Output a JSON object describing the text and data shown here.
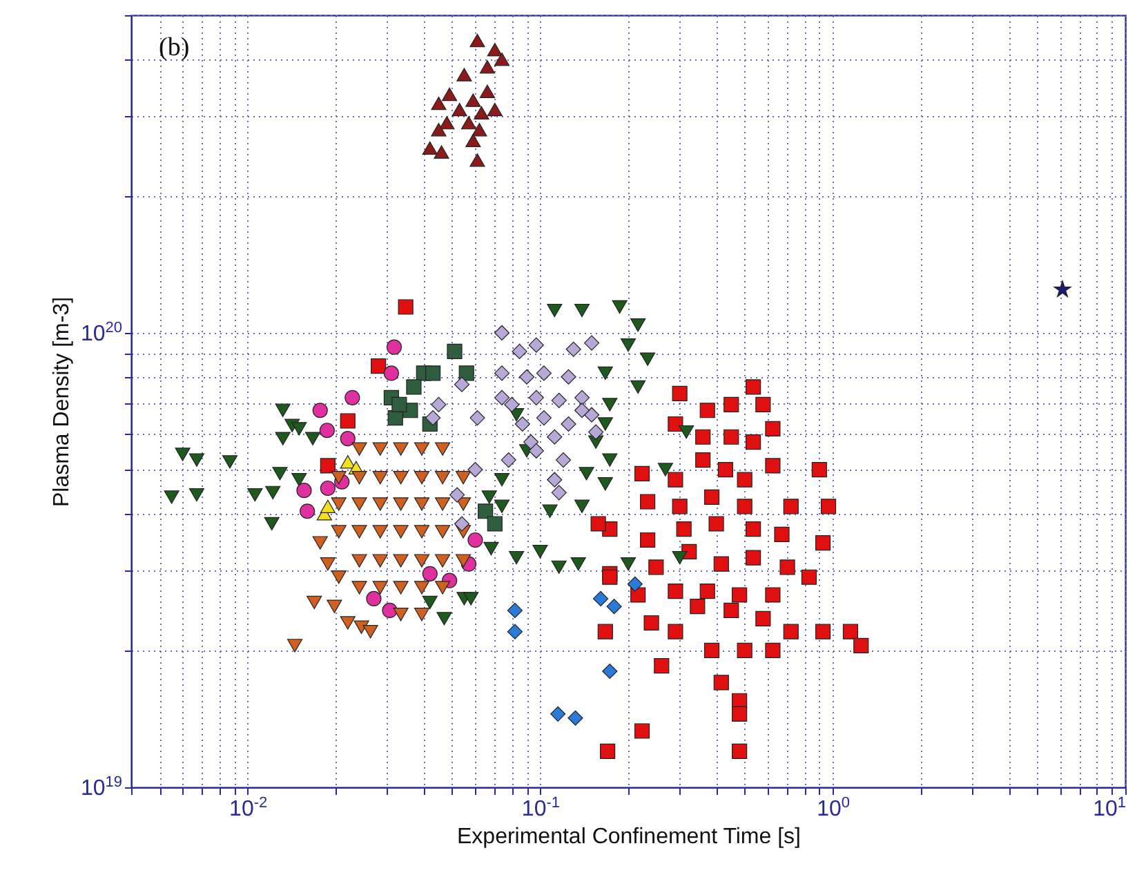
{
  "chart_data": {
    "type": "scatter",
    "xlabel": "Experimental Confinement Time [s]",
    "ylabel": "Plasma Density  [m-3]",
    "annotations": [
      "(b)"
    ],
    "log": "xy",
    "grid": true,
    "xlim": [
      0.004,
      10
    ],
    "ylim": [
      1e+19,
      5e+20
    ],
    "xticks": [
      {
        "value": 0.004,
        "label": null
      },
      {
        "value": 0.005,
        "label": null
      },
      {
        "value": 0.006,
        "label": null
      },
      {
        "value": 0.007,
        "label": null
      },
      {
        "value": 0.008,
        "label": null
      },
      {
        "value": 0.009,
        "label": null
      },
      {
        "value": 0.01,
        "label": "10$^{-2}$"
      },
      {
        "value": 0.02,
        "label": null
      },
      {
        "value": 0.03,
        "label": null
      },
      {
        "value": 0.04,
        "label": null
      },
      {
        "value": 0.05,
        "label": null
      },
      {
        "value": 0.06,
        "label": null
      },
      {
        "value": 0.07,
        "label": null
      },
      {
        "value": 0.08,
        "label": null
      },
      {
        "value": 0.09,
        "label": null
      },
      {
        "value": 0.1,
        "label": "10$^{-1}$"
      },
      {
        "value": 0.2,
        "label": null
      },
      {
        "value": 0.3,
        "label": null
      },
      {
        "value": 0.4,
        "label": null
      },
      {
        "value": 0.5,
        "label": null
      },
      {
        "value": 0.6,
        "label": null
      },
      {
        "value": 0.7,
        "label": null
      },
      {
        "value": 0.8,
        "label": null
      },
      {
        "value": 0.9,
        "label": null
      },
      {
        "value": 1,
        "label": "10$^{0}$"
      },
      {
        "value": 2,
        "label": null
      },
      {
        "value": 3,
        "label": null
      },
      {
        "value": 4,
        "label": null
      },
      {
        "value": 5,
        "label": null
      },
      {
        "value": 6,
        "label": null
      },
      {
        "value": 7,
        "label": null
      },
      {
        "value": 8,
        "label": null
      },
      {
        "value": 9,
        "label": null
      },
      {
        "value": 10,
        "label": "10$^{1}$"
      }
    ],
    "yticks": [
      {
        "value": 1e+19,
        "label": "10$^{19}$"
      },
      {
        "value": 2e+19,
        "label": null
      },
      {
        "value": 3e+19,
        "label": null
      },
      {
        "value": 4e+19,
        "label": null
      },
      {
        "value": 5e+19,
        "label": null
      },
      {
        "value": 6e+19,
        "label": null
      },
      {
        "value": 7e+19,
        "label": null
      },
      {
        "value": 8e+19,
        "label": null
      },
      {
        "value": 9e+19,
        "label": null
      },
      {
        "value": 1e+20,
        "label": "10$^{20}$"
      },
      {
        "value": 2e+20,
        "label": null
      },
      {
        "value": 3e+20,
        "label": null
      },
      {
        "value": 4e+20,
        "label": null
      },
      {
        "value": 5e+20,
        "label": null
      }
    ],
    "series": [
      {
        "color": "#e01010",
        "marker": "square",
        "x": [
          0.0347,
          0.028,
          0.022,
          0.0188,
          0.3,
          0.535,
          0.29,
          0.373,
          0.45,
          0.578,
          0.624,
          0.36,
          0.45,
          0.535,
          0.223,
          0.29,
          0.36,
          0.43,
          0.5,
          0.624,
          0.9,
          0.233,
          0.3,
          0.386,
          0.5,
          0.72,
          0.967,
          0.173,
          0.233,
          0.31,
          0.4,
          0.535,
          0.67,
          0.926,
          0.173,
          0.249,
          0.323,
          0.416,
          0.535,
          0.7,
          0.83,
          0.216,
          0.29,
          0.373,
          0.48,
          0.624,
          0.24,
          0.345,
          0.45,
          0.578,
          0.72,
          0.926,
          1.15,
          1.25,
          0.167,
          0.29,
          0.386,
          0.5,
          0.624,
          0.26,
          0.416,
          0.48,
          0.48,
          0.223,
          0.48,
          0.17,
          0.158,
          0.173
        ],
        "values": [
          1.14e+20,
          8.45e+19,
          6.4e+19,
          5.1e+19,
          7.35e+19,
          7.6e+19,
          6.3e+19,
          6.75e+19,
          6.95e+19,
          6.95e+19,
          6.15e+19,
          5.9e+19,
          5.9e+19,
          5.75e+19,
          4.9e+19,
          4.75e+19,
          5.25e+19,
          5e+19,
          4.75e+19,
          5.1e+19,
          5e+19,
          4.25e+19,
          4.15e+19,
          4.35e+19,
          4.15e+19,
          4.15e+19,
          4.15e+19,
          3.7e+19,
          3.5e+19,
          3.7e+19,
          3.8e+19,
          3.7e+19,
          3.6e+19,
          3.45e+19,
          2.95e+19,
          3.05e+19,
          3.3e+19,
          3.1e+19,
          3.2e+19,
          3.05e+19,
          2.9e+19,
          2.65e+19,
          2.7e+19,
          2.7e+19,
          2.65e+19,
          2.65e+19,
          2.3e+19,
          2.5e+19,
          2.45e+19,
          2.35e+19,
          2.2e+19,
          2.2e+19,
          2.2e+19,
          2.05e+19,
          2.2e+19,
          2.2e+19,
          2e+19,
          2e+19,
          2e+19,
          1.85e+19,
          1.7e+19,
          1.55e+19,
          1.45e+19,
          1.33e+19,
          1.2e+19,
          1.2e+19,
          3.8e+19,
          2.9e+19
        ]
      },
      {
        "color": "#1e5a1e",
        "marker": "triangle-down",
        "x": [
          0.0132,
          0.0142,
          0.0132,
          0.015,
          0.0167,
          0.006,
          0.0067,
          0.0087,
          0.0129,
          0.015,
          0.0055,
          0.0067,
          0.0106,
          0.0122,
          0.0121,
          0.042,
          0.047,
          0.055,
          0.112,
          0.139,
          0.187,
          0.216,
          0.2,
          0.233,
          0.167,
          0.216,
          0.173,
          0.167,
          0.155,
          0.173,
          0.144,
          0.167,
          0.108,
          0.139,
          0.074,
          0.074,
          0.083,
          0.1,
          0.116,
          0.135,
          0.068,
          0.058,
          0.2,
          0.3,
          0.316,
          0.268,
          0.09,
          0.083,
          0.067
        ],
        "values": [
          6.75e+19,
          6.25e+19,
          5.85e+19,
          6.15e+19,
          5.85e+19,
          5.4e+19,
          5.25e+19,
          5.2e+19,
          4.9e+19,
          4.75e+19,
          4.35e+19,
          4.4e+19,
          4.4e+19,
          4.45e+19,
          3.8e+19,
          2.55e+19,
          2.35e+19,
          2.6e+19,
          1.12e+20,
          1.12e+20,
          1.14e+20,
          1.04e+20,
          9.4e+19,
          8.75e+19,
          8.15e+19,
          7.6e+19,
          6.95e+19,
          6.3e+19,
          5.75e+19,
          5.25e+19,
          4.9e+19,
          4.65e+19,
          4.05e+19,
          4.15e+19,
          4.75e+19,
          4.15e+19,
          3.2e+19,
          3.3e+19,
          3.05e+19,
          3.1e+19,
          3.35e+19,
          2.6e+19,
          3.1e+19,
          3.2e+19,
          6.05e+19,
          5e+19,
          5.5e+19,
          6.6e+19,
          4.35e+19
        ]
      },
      {
        "color": "#2e5e3e",
        "marker": "square",
        "x": [
          0.051,
          0.04,
          0.031,
          0.036,
          0.032,
          0.042,
          0.043,
          0.056,
          0.037,
          0.033,
          0.065,
          0.07
        ],
        "values": [
          9.1e+19,
          8.15e+19,
          7.2e+19,
          6.75e+19,
          6.5e+19,
          6.3e+19,
          8.15e+19,
          8.15e+19,
          7.6e+19,
          6.95e+19,
          4.05e+19,
          3.8e+19
        ]
      },
      {
        "color": "#e030a0",
        "marker": "circle",
        "x": [
          0.0317,
          0.031,
          0.0228,
          0.0177,
          0.0187,
          0.022,
          0.0156,
          0.016,
          0.0188,
          0.021,
          0.027,
          0.0306,
          0.049,
          0.057,
          0.042,
          0.06
        ],
        "values": [
          9.3e+19,
          8.15e+19,
          7.2e+19,
          6.75e+19,
          6.1e+19,
          5.85e+19,
          4.5e+19,
          4.05e+19,
          4.55e+19,
          4.7e+19,
          2.6e+19,
          2.45e+19,
          2.85e+19,
          3.1e+19,
          2.95e+19,
          3.5e+19
        ]
      },
      {
        "color": "#f0e020",
        "marker": "triangle",
        "x": [
          0.022,
          0.0235,
          0.0183,
          0.0188
        ],
        "values": [
          5.2e+19,
          5.05e+19,
          4e+19,
          4.15e+19
        ]
      },
      {
        "color": "#d06020",
        "marker": "triangle-down",
        "x": [
          0.0241,
          0.0284,
          0.0334,
          0.0394,
          0.0464,
          0.0205,
          0.0241,
          0.0284,
          0.0334,
          0.0394,
          0.0464,
          0.0546,
          0.0205,
          0.0241,
          0.0284,
          0.0334,
          0.0394,
          0.0464,
          0.0546,
          0.0205,
          0.0241,
          0.0284,
          0.0334,
          0.0394,
          0.0464,
          0.0546,
          0.0241,
          0.0284,
          0.0334,
          0.0394,
          0.0464,
          0.0546,
          0.0241,
          0.0284,
          0.0334,
          0.0394,
          0.0464,
          0.0334,
          0.0394,
          0.0177,
          0.0188,
          0.0205,
          0.0169,
          0.0198,
          0.022,
          0.0245,
          0.0263,
          0.0145
        ],
        "values": [
          5.55e+19,
          5.55e+19,
          5.55e+19,
          5.55e+19,
          5.55e+19,
          4.8e+19,
          4.8e+19,
          4.8e+19,
          4.8e+19,
          4.8e+19,
          4.8e+19,
          4.8e+19,
          4.2e+19,
          4.2e+19,
          4.2e+19,
          4.2e+19,
          4.2e+19,
          4.2e+19,
          4.2e+19,
          3.65e+19,
          3.65e+19,
          3.65e+19,
          3.65e+19,
          3.65e+19,
          3.65e+19,
          3.65e+19,
          3.15e+19,
          3.15e+19,
          3.15e+19,
          3.15e+19,
          3.15e+19,
          3.15e+19,
          2.75e+19,
          2.75e+19,
          2.75e+19,
          2.75e+19,
          2.75e+19,
          2.4e+19,
          2.4e+19,
          3.45e+19,
          3.1e+19,
          2.9e+19,
          2.55e+19,
          2.5e+19,
          2.3e+19,
          2.25e+19,
          2.2e+19,
          2.05e+19
        ]
      },
      {
        "color": "#b8a8d8",
        "marker": "diamond",
        "x": [
          0.074,
          0.085,
          0.097,
          0.13,
          0.15,
          0.054,
          0.045,
          0.043,
          0.061,
          0.074,
          0.074,
          0.09,
          0.103,
          0.125,
          0.08,
          0.097,
          0.116,
          0.139,
          0.087,
          0.103,
          0.125,
          0.15,
          0.155,
          0.078,
          0.093,
          0.112,
          0.12,
          0.112,
          0.116,
          0.06,
          0.052,
          0.054,
          0.097,
          0.139
        ],
        "values": [
          1e+20,
          9.1e+19,
          9.4e+19,
          9.2e+19,
          9.5e+19,
          7.7e+19,
          6.95e+19,
          6.5e+19,
          6.5e+19,
          8.15e+19,
          7.2e+19,
          8e+19,
          8.15e+19,
          8e+19,
          6.95e+19,
          7.2e+19,
          7.1e+19,
          7.2e+19,
          6.3e+19,
          6.5e+19,
          6.3e+19,
          6.6e+19,
          6.05e+19,
          5.25e+19,
          5.75e+19,
          5.9e+19,
          5.25e+19,
          4.75e+19,
          4.45e+19,
          5e+19,
          4.4e+19,
          3.8e+19,
          5.5e+19,
          6.75e+19
        ]
      },
      {
        "color": "#2a7ad8",
        "marker": "diamond",
        "x": [
          0.082,
          0.082,
          0.161,
          0.179,
          0.211,
          0.173,
          0.132,
          0.115
        ],
        "values": [
          2.45e+19,
          2.2e+19,
          2.6e+19,
          2.5e+19,
          2.8e+19,
          1.8e+19,
          1.42e+19,
          1.45e+19
        ]
      },
      {
        "color": "#8b1a1a",
        "marker": "triangle",
        "x": [
          0.061,
          0.07,
          0.074,
          0.066,
          0.055,
          0.066,
          0.049,
          0.059,
          0.045,
          0.053,
          0.063,
          0.07,
          0.048,
          0.057,
          0.045,
          0.062,
          0.059,
          0.042,
          0.046,
          0.061
        ],
        "values": [
          4.4e+20,
          4.2e+20,
          4e+20,
          3.85e+20,
          3.7e+20,
          3.4e+20,
          3.35e+20,
          3.25e+20,
          3.2e+20,
          3.1e+20,
          3.05e+20,
          3.1e+20,
          2.9e+20,
          2.9e+20,
          2.8e+20,
          2.8e+20,
          2.65e+20,
          2.55e+20,
          2.5e+20,
          2.4e+20
        ]
      },
      {
        "color": "#1a1a6e",
        "marker": "star",
        "x": [
          6.1
        ],
        "values": [
          1.25e+20
        ]
      }
    ]
  }
}
